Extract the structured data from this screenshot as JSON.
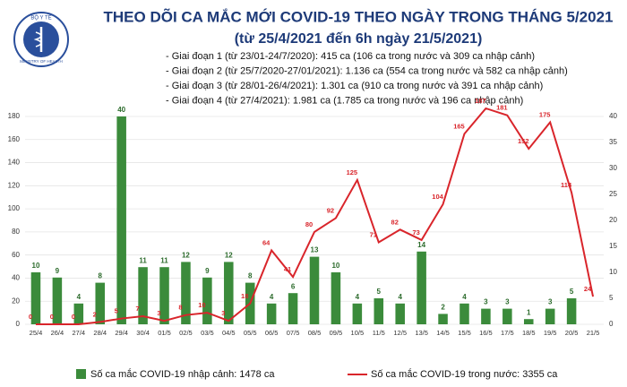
{
  "logo": {
    "top": "BỘ Y TẾ",
    "bottom": "MINISTRY OF HEALTH"
  },
  "chart_data": {
    "type": "bar-line",
    "title": "THEO DÕI CA MẮC MỚI COVID-19 THEO NGÀY TRONG THÁNG 5/2021",
    "subtitle": "(từ 25/4/2021 đến 6h ngày 21/5/2021)",
    "notes": [
      "- Giai đoạn 1 (từ 23/01-24/7/2020): 415 ca (106 ca trong nước và 309 ca nhập cảnh)",
      "- Giai đoạn 2 (từ 25/7/2020-27/01/2021): 1.136 ca (554 ca trong nước và 582 ca nhập cảnh)",
      "- Giai đoạn 3 (từ 28/01-26/4/2021): 1.301 ca (910 ca trong nước và 391 ca nhập cảnh)",
      "- Giai đoạn 4 (từ 27/4/2021): 1.981 ca (1.785 ca trong nước và 196 ca nhập cảnh)"
    ],
    "categories": [
      "25/4",
      "26/4",
      "27/4",
      "28/4",
      "29/4",
      "30/4",
      "01/5",
      "02/5",
      "03/5",
      "04/5",
      "05/5",
      "06/5",
      "07/5",
      "08/5",
      "09/5",
      "10/5",
      "11/5",
      "12/5",
      "13/5",
      "14/5",
      "15/5",
      "16/5",
      "17/5",
      "18/5",
      "19/5",
      "20/5",
      "21/5"
    ],
    "series": [
      {
        "name": "Số ca mắc COVID-19 nhập cảnh: 1478 ca",
        "type": "bar",
        "axis": "y2",
        "color": "#3b8b3b",
        "values": [
          10,
          9,
          4,
          8,
          40,
          11,
          11,
          12,
          9,
          12,
          8,
          4,
          6,
          13,
          10,
          4,
          5,
          4,
          14,
          2,
          4,
          3,
          3,
          1,
          3,
          5,
          null
        ]
      },
      {
        "name": "Số ca mắc COVID-19 trong nước: 3355 ca",
        "type": "line",
        "color": "#d9252b",
        "values": [
          0,
          0,
          0,
          2,
          5,
          7,
          3,
          8,
          10,
          3,
          18,
          64,
          41,
          80,
          92,
          125,
          71,
          82,
          73,
          104,
          165,
          187,
          181,
          152,
          175,
          114,
          24
        ]
      }
    ],
    "ylim": [
      0,
      180
    ],
    "yticks": [
      0,
      20,
      40,
      60,
      80,
      100,
      120,
      140,
      160,
      180
    ],
    "y2lim": [
      0,
      40
    ],
    "y2ticks": [
      0,
      5,
      10,
      15,
      20,
      25,
      30,
      35,
      40
    ],
    "grid": true
  }
}
